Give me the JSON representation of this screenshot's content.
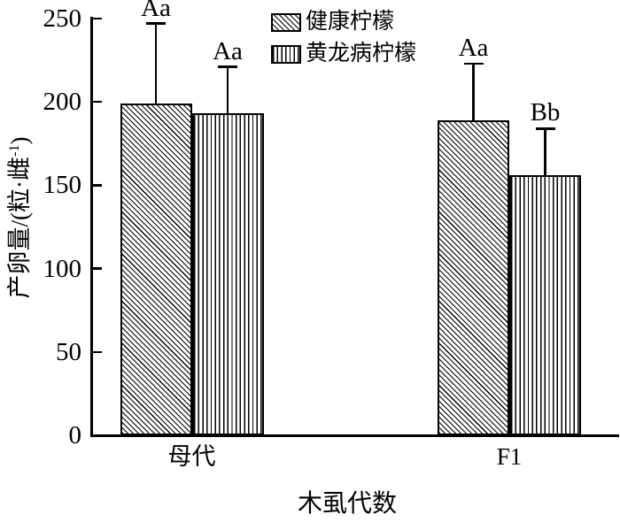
{
  "figure": {
    "background": "#ffffff",
    "ink_color": "#000000"
  },
  "legend": {
    "items": [
      {
        "label": "健康柠檬",
        "pattern": "diagonal-hatch"
      },
      {
        "label": "黄龙病柠檬",
        "pattern": "vertical-hatch"
      }
    ]
  },
  "x_axis": {
    "title": "木虱代数",
    "categories": [
      "母代",
      "F1"
    ]
  },
  "y_axis": {
    "title_prefix": "产卵量/(粒·雌",
    "title_sup": "-1",
    "title_suffix": ")",
    "tick_labels": [
      "0",
      "50",
      "100",
      "150",
      "200",
      "250"
    ]
  },
  "chart_data": {
    "type": "bar",
    "title": "",
    "categories": [
      "母代",
      "F1"
    ],
    "series": [
      {
        "name": "健康柠檬",
        "pattern": "diagonal-hatch",
        "values": [
          199,
          189
        ],
        "errors": [
          48,
          34
        ],
        "sig_labels": [
          "Aa",
          "Aa"
        ]
      },
      {
        "name": "黄龙病柠檬",
        "pattern": "vertical-hatch",
        "values": [
          193,
          156
        ],
        "errors": [
          28,
          28
        ],
        "sig_labels": [
          "Aa",
          "Bb"
        ]
      }
    ],
    "xlabel": "木虱代数",
    "ylabel": "产卵量/(粒·雌⁻¹)",
    "ylim": [
      0,
      250
    ],
    "yticks": [
      0,
      50,
      100,
      150,
      200,
      250
    ],
    "grid": false,
    "legend_position": "top-center",
    "error_bars": "upper-only"
  }
}
